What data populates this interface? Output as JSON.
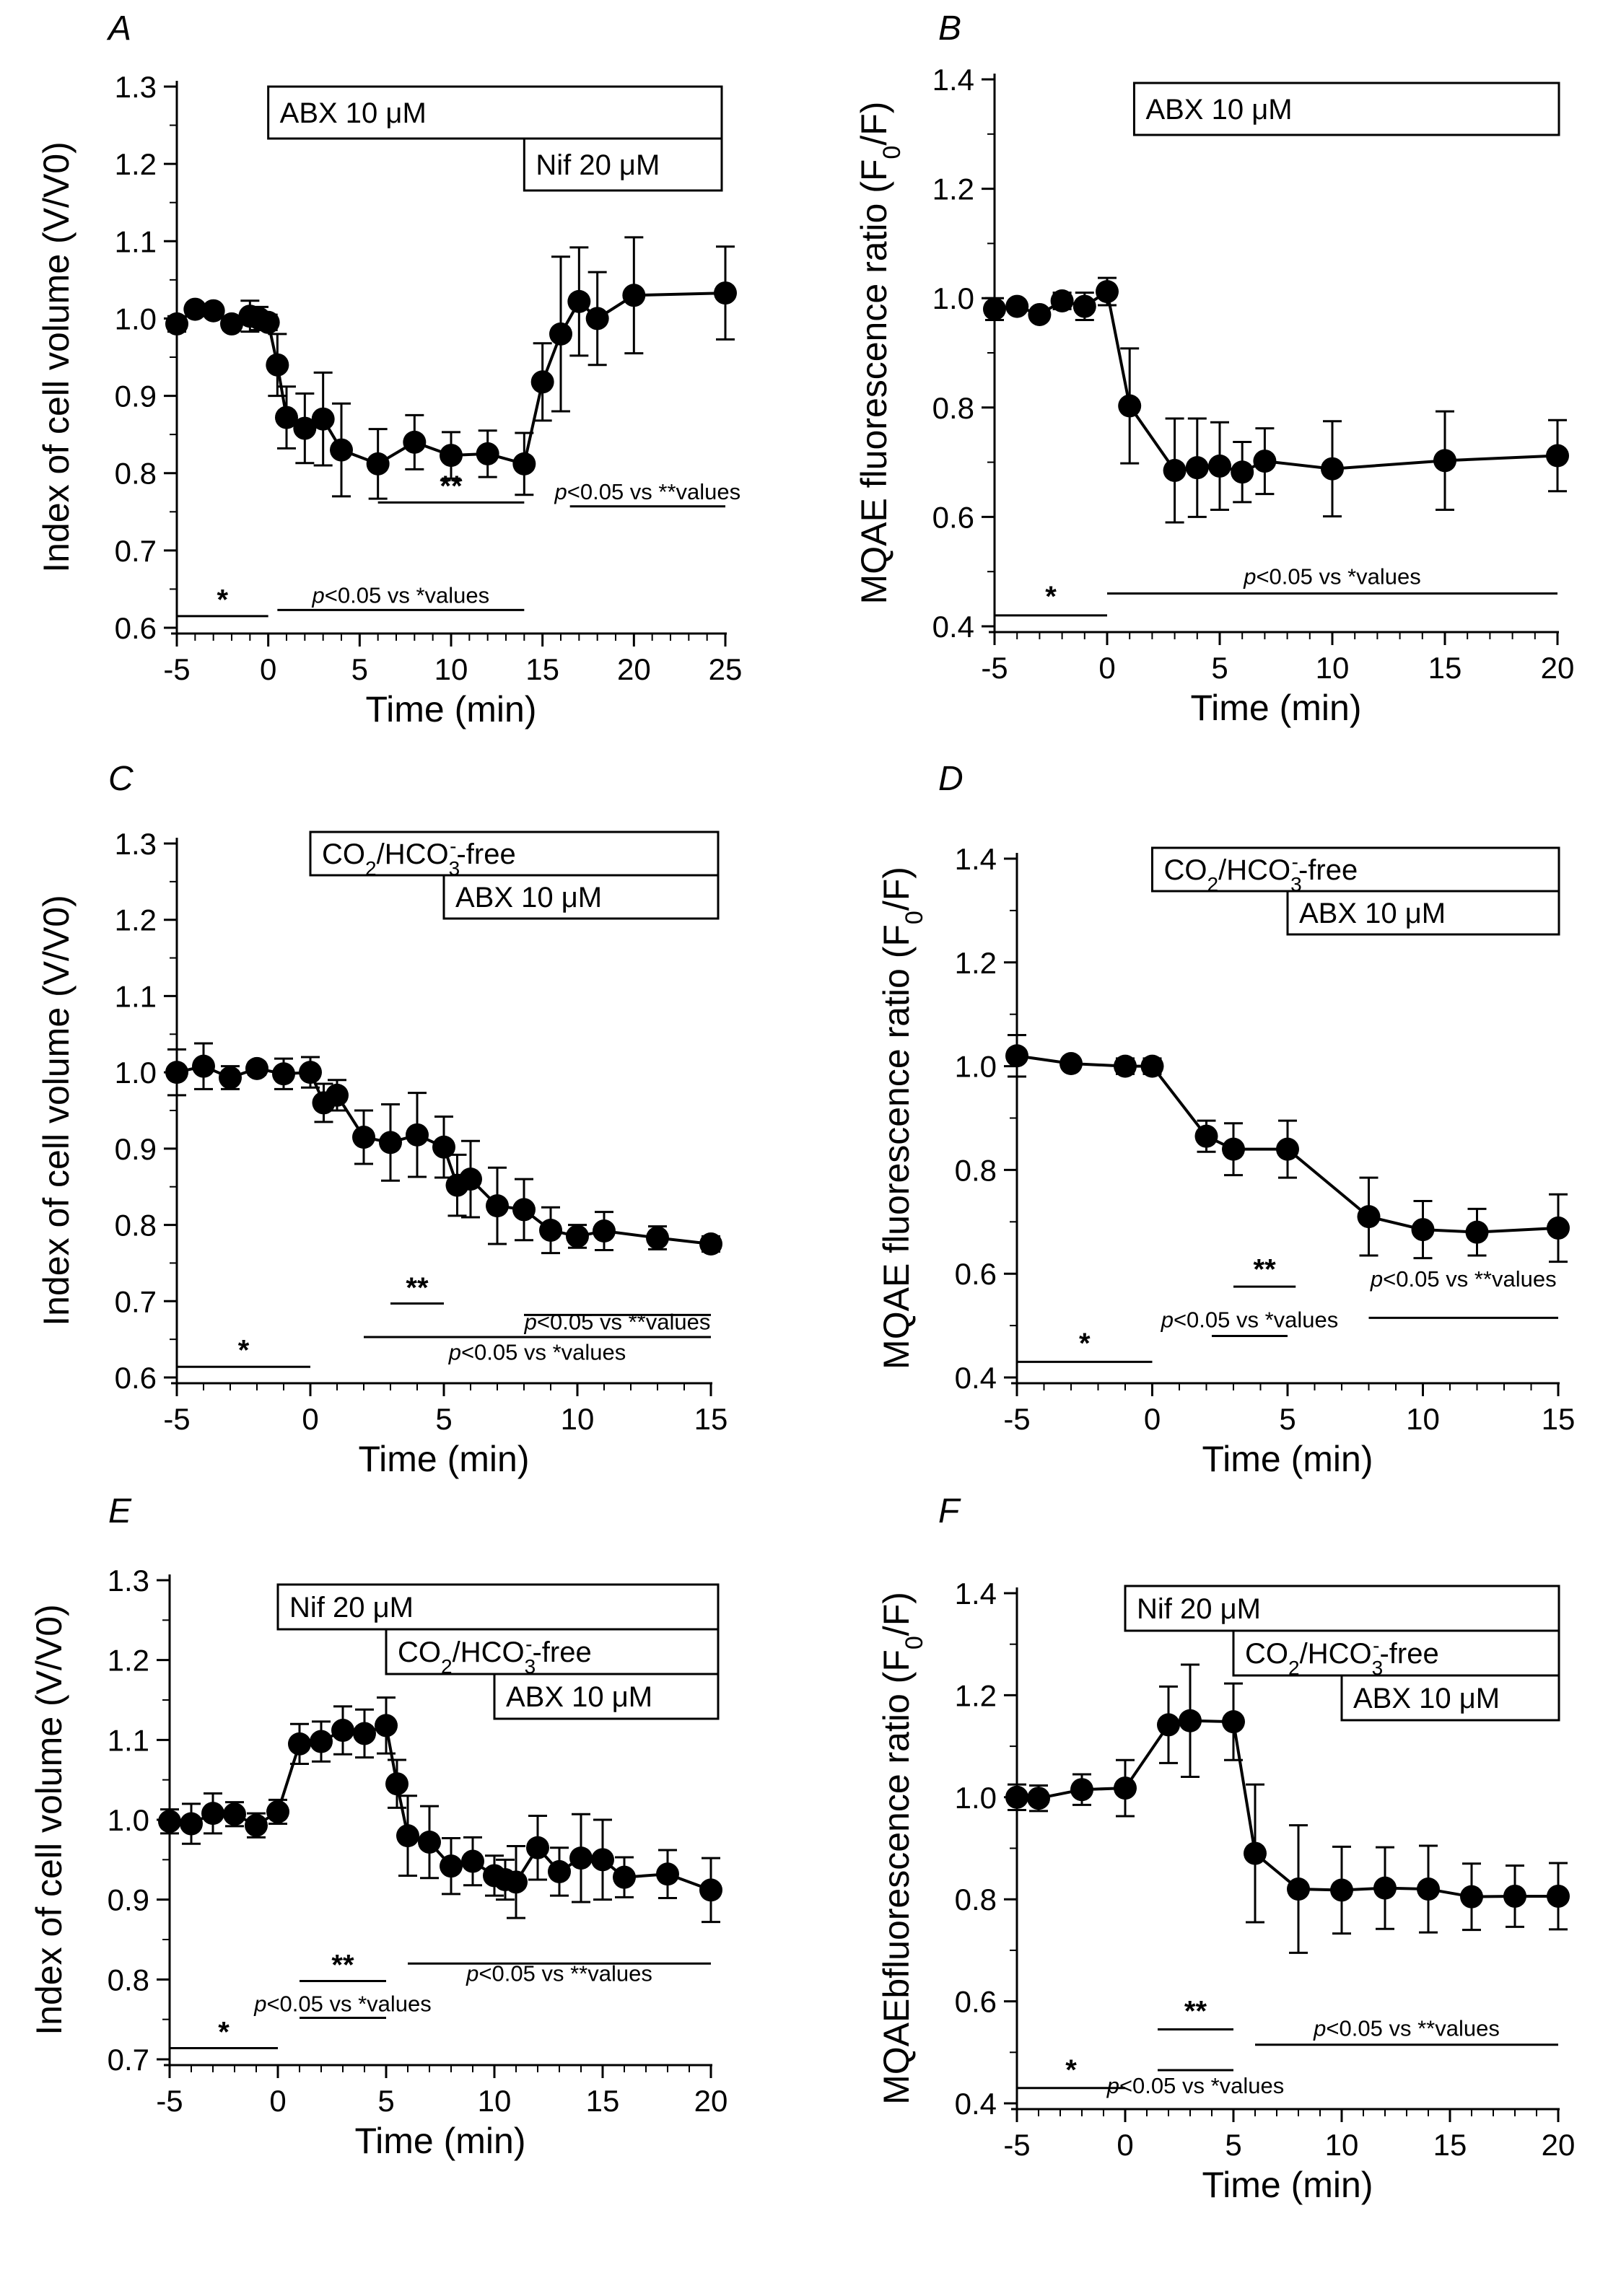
{
  "chart_data": [
    {
      "panel": "A",
      "type": "line",
      "xlabel": "Time (min)",
      "ylabel": "Index of cell volume (V/V0)",
      "xlim": [
        -5,
        25
      ],
      "ylim": [
        0.6,
        1.3
      ],
      "xticks": [
        -5,
        0,
        5,
        10,
        15,
        20,
        25
      ],
      "yticks": [
        0.6,
        0.7,
        0.8,
        0.9,
        1.0,
        1.1,
        1.2,
        1.3
      ],
      "ytick_labels": [
        "0.6",
        "0.7",
        "0.8",
        "0.9",
        "1.0",
        "1.1",
        "1.2",
        "1.3"
      ],
      "x": [
        -5,
        -4,
        -3,
        -2,
        -1,
        -0.5,
        0,
        0.5,
        1,
        2,
        3,
        4,
        6,
        8,
        10,
        12,
        14,
        15,
        16,
        17,
        18,
        20,
        25
      ],
      "y": [
        0.993,
        1.012,
        1.01,
        0.993,
        1.003,
        1.0,
        0.995,
        0.94,
        0.872,
        0.858,
        0.87,
        0.83,
        0.812,
        0.84,
        0.823,
        0.825,
        0.812,
        0.918,
        0.98,
        1.022,
        1.0,
        1.03,
        1.033
      ],
      "err": [
        0.01,
        0.005,
        0.005,
        0.008,
        0.02,
        0.015,
        0.01,
        0.04,
        0.04,
        0.045,
        0.06,
        0.06,
        0.045,
        0.035,
        0.03,
        0.03,
        0.04,
        0.05,
        0.1,
        0.07,
        0.06,
        0.075,
        0.06
      ],
      "treatments": [
        {
          "label": "ABX 10 μM",
          "start": 0,
          "end": 25,
          "row": 0
        },
        {
          "label": "Nif 20 μM",
          "start": 14,
          "end": 25,
          "row": 1
        }
      ],
      "annotations": [
        {
          "text": "*",
          "start": -5,
          "end": 0,
          "y": 0.615,
          "text_y": 0.624
        },
        {
          "text": "p<0.05 vs *values",
          "start": 0.5,
          "end": 14,
          "y": 0.623,
          "text_y": 0.632
        },
        {
          "text": "**",
          "start": 6,
          "end": 14,
          "y": 0.762,
          "text_y": 0.771
        },
        {
          "text": "p<0.05 vs **values",
          "start": 16.5,
          "end": 25,
          "y": 0.757,
          "text_y": 0.766
        }
      ]
    },
    {
      "panel": "B",
      "type": "line",
      "xlabel": "Time (min)",
      "ylabel": "MQAE fluorescence ratio (F0/F)",
      "xlim": [
        -5,
        20
      ],
      "ylim": [
        0.4,
        1.4
      ],
      "xticks": [
        -5,
        0,
        5,
        10,
        15,
        20
      ],
      "yticks": [
        0.4,
        0.6,
        0.8,
        1.0,
        1.2,
        1.4
      ],
      "ytick_labels": [
        "0.4",
        "0.6",
        "0.8",
        "1.0",
        "1.2",
        "1.4"
      ],
      "x": [
        -5,
        -4,
        -3,
        -2,
        -1,
        0,
        1,
        3,
        4,
        5,
        6,
        7,
        10,
        15,
        20
      ],
      "y": [
        0.98,
        0.985,
        0.97,
        0.995,
        0.985,
        1.012,
        0.803,
        0.685,
        0.69,
        0.693,
        0.682,
        0.702,
        0.688,
        0.703,
        0.712
      ],
      "err": [
        0.02,
        0.01,
        0.01,
        0.015,
        0.025,
        0.025,
        0.105,
        0.095,
        0.09,
        0.08,
        0.055,
        0.06,
        0.087,
        0.09,
        0.065
      ],
      "treatments": [
        {
          "label": "ABX 10 μM",
          "start": 1.2,
          "end": 20,
          "row": 0
        }
      ],
      "annotations": [
        {
          "text": "*",
          "start": -5,
          "end": 0,
          "y": 0.42,
          "text_y": 0.437
        },
        {
          "text": "p<0.05 vs *values",
          "start": 0,
          "end": 20,
          "y": 0.46,
          "text_y": 0.477
        }
      ]
    },
    {
      "panel": "C",
      "type": "line",
      "xlabel": "Time (min)",
      "ylabel": "Index of cell volume (V/V0)",
      "xlim": [
        -5,
        15
      ],
      "ylim": [
        0.6,
        1.3
      ],
      "xticks": [
        -5,
        0,
        5,
        10,
        15
      ],
      "yticks": [
        0.6,
        0.7,
        0.8,
        0.9,
        1.0,
        1.1,
        1.2,
        1.3
      ],
      "ytick_labels": [
        "0.6",
        "0.7",
        "0.8",
        "0.9",
        "1.0",
        "1.1",
        "1.2",
        "1.3"
      ],
      "x": [
        -5,
        -4,
        -3,
        -2,
        -1,
        0,
        0.5,
        1,
        2,
        3,
        4,
        5,
        5.5,
        6,
        7,
        8,
        9,
        10,
        11,
        13,
        15
      ],
      "y": [
        1.0,
        1.008,
        0.993,
        1.005,
        0.998,
        1.0,
        0.96,
        0.97,
        0.915,
        0.908,
        0.918,
        0.902,
        0.852,
        0.86,
        0.825,
        0.82,
        0.793,
        0.785,
        0.792,
        0.783,
        0.775
      ],
      "err": [
        0.03,
        0.03,
        0.015,
        0.008,
        0.02,
        0.02,
        0.025,
        0.02,
        0.035,
        0.05,
        0.055,
        0.04,
        0.04,
        0.05,
        0.05,
        0.04,
        0.03,
        0.015,
        0.025,
        0.015,
        0.01
      ],
      "treatments": [
        {
          "label": "CO2/HCO3--free",
          "start": 0,
          "end": 15,
          "row": 0
        },
        {
          "label": "ABX 10 μM",
          "start": 5,
          "end": 15,
          "row": 1
        }
      ],
      "annotations": [
        {
          "text": "*",
          "start": -5,
          "end": 0,
          "y": 0.614,
          "text_y": 0.623
        },
        {
          "text": "p<0.05 vs *values",
          "start": 2,
          "end": 15,
          "y": 0.653,
          "text_y": 0.623
        },
        {
          "text": "**",
          "start": 3,
          "end": 5,
          "y": 0.697,
          "text_y": 0.705
        },
        {
          "text": "p<0.05 vs **values",
          "start": 8,
          "end": 15,
          "y": 0.682,
          "text_y": 0.663
        }
      ]
    },
    {
      "panel": "D",
      "type": "line",
      "xlabel": "Time (min)",
      "ylabel": "MQAE fluorescence ratio (F0/F)",
      "xlim": [
        -5,
        15
      ],
      "ylim": [
        0.4,
        1.4
      ],
      "xticks": [
        -5,
        0,
        5,
        10,
        15
      ],
      "yticks": [
        0.4,
        0.6,
        0.8,
        1.0,
        1.2,
        1.4
      ],
      "ytick_labels": [
        "0.4",
        "0.6",
        "0.8",
        "1.0",
        "1.2",
        "1.4"
      ],
      "x": [
        -5,
        -3,
        -1,
        0,
        2,
        3,
        5,
        8,
        10,
        12,
        15
      ],
      "y": [
        1.02,
        1.005,
        1.0,
        1.0,
        0.865,
        0.84,
        0.84,
        0.71,
        0.685,
        0.68,
        0.688
      ],
      "err": [
        0.04,
        0.01,
        0.015,
        0.015,
        0.03,
        0.05,
        0.055,
        0.075,
        0.055,
        0.045,
        0.065
      ],
      "treatments": [
        {
          "label": "CO2/HCO3--free",
          "start": 0,
          "end": 15,
          "row": 0
        },
        {
          "label": "ABX 10 μM",
          "start": 5,
          "end": 15,
          "row": 1
        }
      ],
      "annotations": [
        {
          "text": "*",
          "start": -5,
          "end": 0,
          "y": 0.43,
          "text_y": 0.447
        },
        {
          "text": "p<0.05 vs *values",
          "start": 2.2,
          "end": 5,
          "y": 0.48,
          "text_y": 0.497
        },
        {
          "text": "**",
          "start": 3,
          "end": 5.3,
          "y": 0.575,
          "text_y": 0.59
        },
        {
          "text": "p<0.05 vs **values",
          "start": 8,
          "end": 15,
          "y": 0.515,
          "text_y": 0.575
        }
      ]
    },
    {
      "panel": "E",
      "type": "line",
      "xlabel": "Time (min)",
      "ylabel": "Index of cell volume (V/V0)",
      "xlim": [
        -5,
        20
      ],
      "ylim": [
        0.7,
        1.3
      ],
      "xticks": [
        -5,
        0,
        5,
        10,
        15,
        20
      ],
      "yticks": [
        0.7,
        0.8,
        0.9,
        1.0,
        1.1,
        1.2,
        1.3
      ],
      "ytick_labels": [
        "0.7",
        "0.8",
        "0.9",
        "1.0",
        "1.1",
        "1.2",
        "1.3"
      ],
      "x": [
        -5,
        -4,
        -3,
        -2,
        -1,
        0,
        1,
        2,
        3,
        4,
        5,
        5.5,
        6,
        7,
        8,
        9,
        10,
        10.5,
        11,
        12,
        13,
        14,
        15,
        16,
        18,
        20
      ],
      "y": [
        0.998,
        0.995,
        1.008,
        1.007,
        0.993,
        1.01,
        1.095,
        1.098,
        1.112,
        1.108,
        1.118,
        1.045,
        0.98,
        0.972,
        0.942,
        0.948,
        0.93,
        0.925,
        0.922,
        0.965,
        0.935,
        0.952,
        0.95,
        0.928,
        0.932,
        0.912
      ],
      "err": [
        0.015,
        0.025,
        0.025,
        0.015,
        0.015,
        0.015,
        0.025,
        0.025,
        0.03,
        0.03,
        0.035,
        0.03,
        0.05,
        0.045,
        0.035,
        0.03,
        0.025,
        0.025,
        0.045,
        0.04,
        0.03,
        0.055,
        0.05,
        0.025,
        0.03,
        0.04
      ],
      "treatments": [
        {
          "label": "Nif 20 μM",
          "start": 0,
          "end": 20,
          "row": 0
        },
        {
          "label": "CO2/HCO3--free",
          "start": 5,
          "end": 20,
          "row": 1
        },
        {
          "label": "ABX 10 μM",
          "start": 10,
          "end": 20,
          "row": 2
        }
      ],
      "annotations": [
        {
          "text": "*",
          "start": -5,
          "end": 0,
          "y": 0.714,
          "text_y": 0.722
        },
        {
          "text": "p<0.05 vs *values",
          "start": 1,
          "end": 5,
          "y": 0.752,
          "text_y": 0.76
        },
        {
          "text": "**",
          "start": 1,
          "end": 5,
          "y": 0.798,
          "text_y": 0.806
        },
        {
          "text": "p<0.05 vs **values",
          "start": 6,
          "end": 20,
          "y": 0.82,
          "text_y": 0.798
        }
      ]
    },
    {
      "panel": "F",
      "type": "line",
      "xlabel": "Time (min)",
      "ylabel": "MQAEbfluorescence ratio (F0/F)",
      "xlim": [
        -5,
        20
      ],
      "ylim": [
        0.4,
        1.4
      ],
      "xticks": [
        -5,
        0,
        5,
        10,
        15,
        20
      ],
      "yticks": [
        0.4,
        0.6,
        0.8,
        1.0,
        1.2,
        1.4
      ],
      "ytick_labels": [
        "0.4",
        "0.6",
        "0.8",
        "1.0",
        "1.2",
        "1.4"
      ],
      "x": [
        -5,
        -4,
        -2,
        0,
        2,
        3,
        5,
        6,
        8,
        10,
        12,
        14,
        16,
        18,
        20
      ],
      "y": [
        1.0,
        0.998,
        1.015,
        1.018,
        1.142,
        1.15,
        1.148,
        0.89,
        0.82,
        0.818,
        0.822,
        0.82,
        0.805,
        0.806,
        0.806
      ],
      "err": [
        0.025,
        0.025,
        0.03,
        0.055,
        0.075,
        0.11,
        0.075,
        0.135,
        0.125,
        0.085,
        0.08,
        0.085,
        0.065,
        0.06,
        0.065
      ],
      "treatments": [
        {
          "label": "Nif 20 μM",
          "start": 0,
          "end": 20,
          "row": 0
        },
        {
          "label": "CO2/HCO3--free",
          "start": 5,
          "end": 20,
          "row": 1
        },
        {
          "label": "ABX 10 μM",
          "start": 10,
          "end": 20,
          "row": 2
        }
      ],
      "annotations": [
        {
          "text": "*",
          "start": -5,
          "end": 0,
          "y": 0.43,
          "text_y": 0.447
        },
        {
          "text": "p<0.05 vs *values",
          "start": 1.5,
          "end": 5,
          "y": 0.465,
          "text_y": 0.42
        },
        {
          "text": "**",
          "start": 1.5,
          "end": 5,
          "y": 0.545,
          "text_y": 0.562
        },
        {
          "text": "p<0.05 vs **values",
          "start": 6,
          "end": 20,
          "y": 0.515,
          "text_y": 0.532
        }
      ]
    }
  ]
}
